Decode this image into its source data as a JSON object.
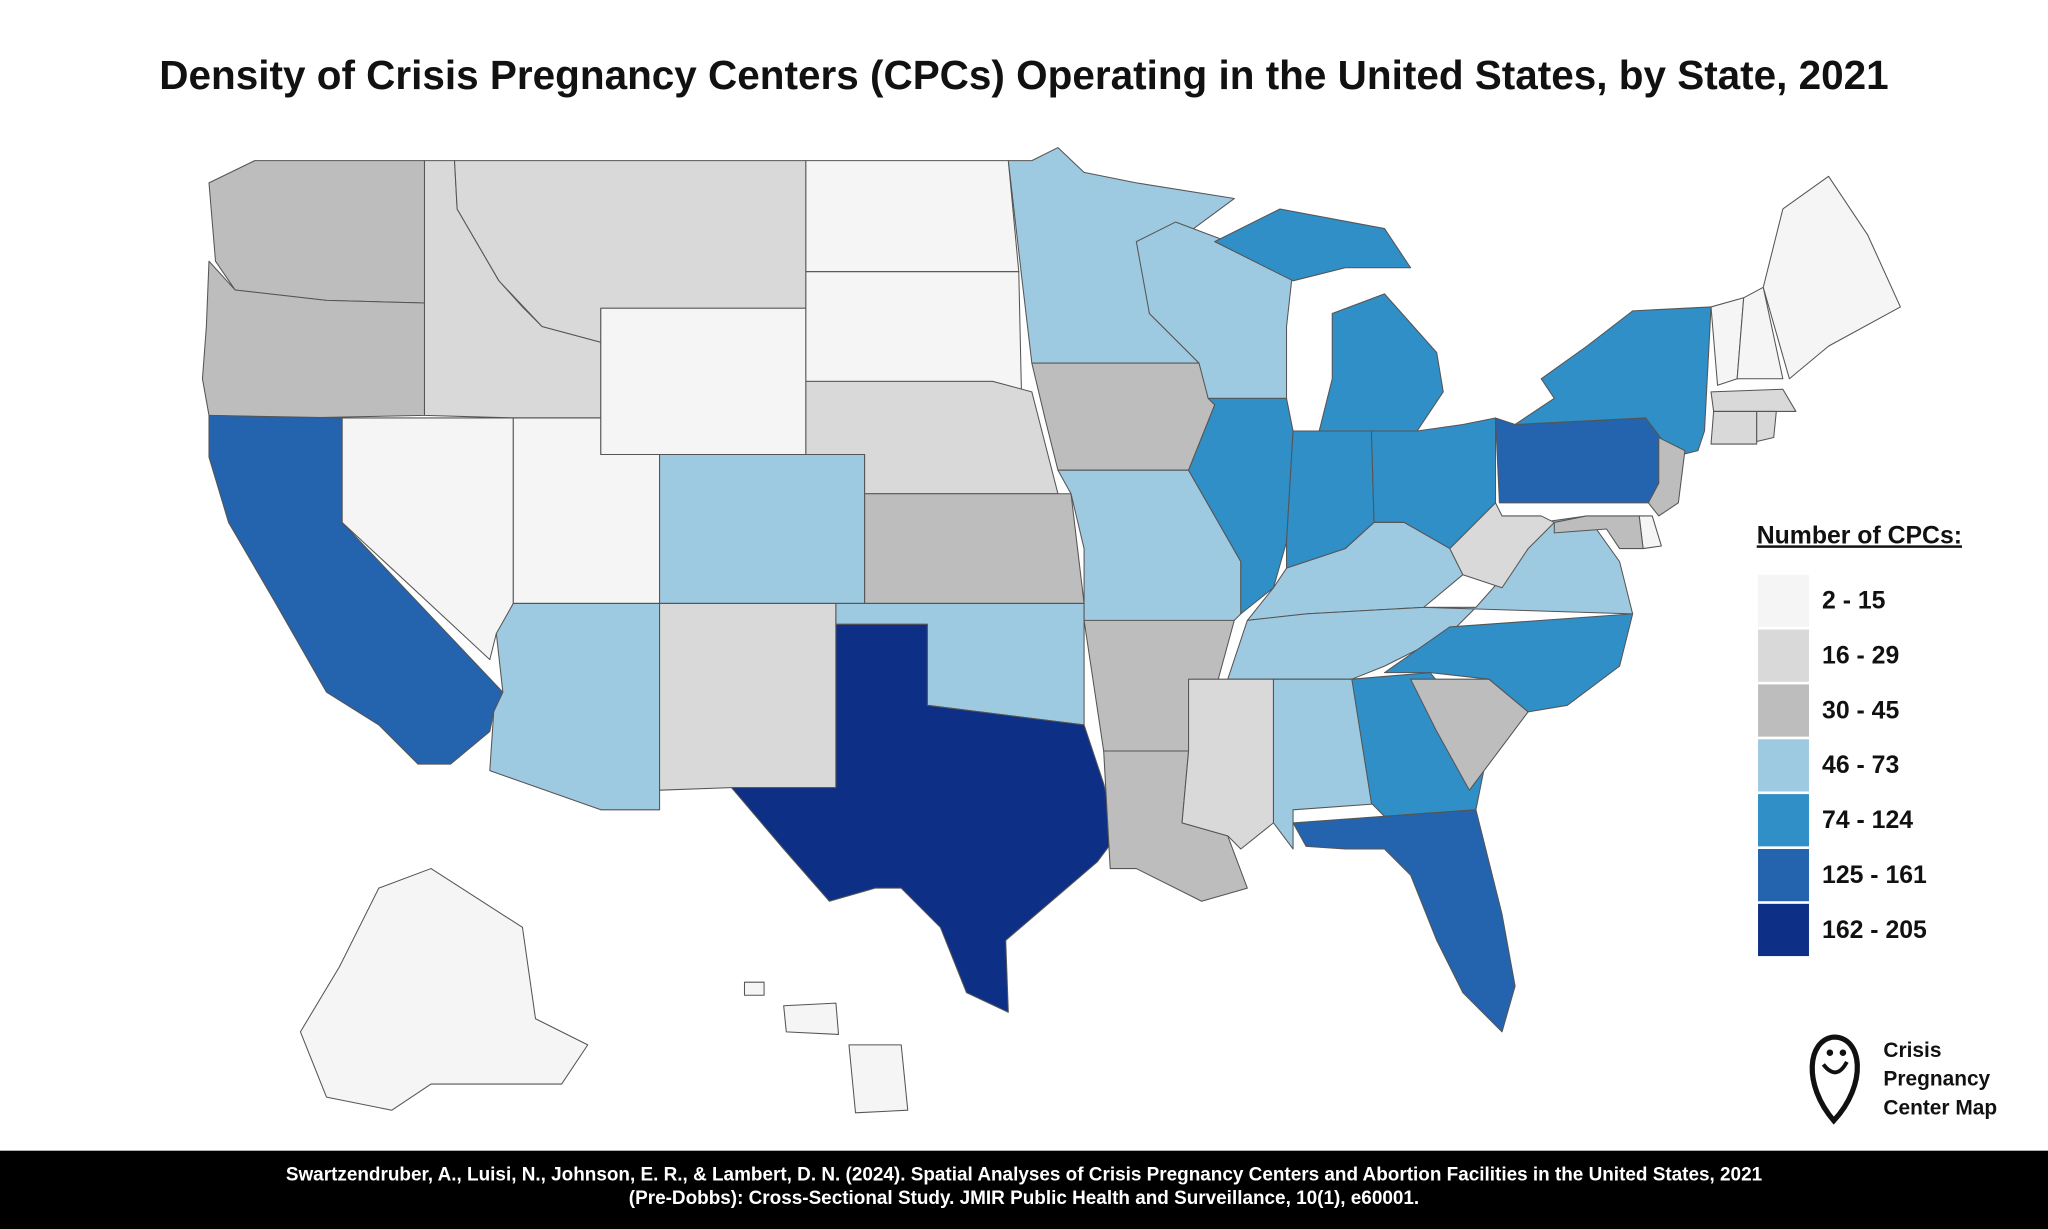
{
  "title": "Density of Crisis Pregnancy Centers (CPCs) Operating in the United States, by State, 2021",
  "chart_data": {
    "type": "choropleth",
    "legend_title": "Number of CPCs:",
    "bins": [
      {
        "label": "2 - 15",
        "color": "#f5f5f5"
      },
      {
        "label": "16 - 29",
        "color": "#d9d9d9"
      },
      {
        "label": "30 - 45",
        "color": "#bdbdbd"
      },
      {
        "label": "46 - 73",
        "color": "#9ecae1"
      },
      {
        "label": "74 - 124",
        "color": "#2f8fc6"
      },
      {
        "label": "125 - 161",
        "color": "#2463ae"
      },
      {
        "label": "162 - 205",
        "color": "#0d2f85"
      }
    ],
    "regions": [
      2,
      2,
      5,
      1,
      0,
      0,
      3,
      1,
      0,
      3,
      1,
      0,
      0,
      1,
      2,
      3,
      6,
      3,
      2,
      3,
      2,
      2,
      3,
      4,
      4,
      4,
      4,
      3,
      3,
      1,
      3,
      4,
      5,
      2,
      4,
      3,
      1,
      5,
      4,
      0,
      0,
      0,
      1,
      1,
      1,
      2,
      0,
      2,
      0,
      0
    ]
  },
  "brand": [
    "Crisis",
    "Pregnancy",
    "Center Map"
  ],
  "citation": [
    "Swartzendruber, A., Luisi, N., Johnson, E. R., & Lambert, D. N. (2024). Spatial Analyses of Crisis Pregnancy Centers and Abortion Facilities in the United States, 2021",
    "(Pre-Dobbs): Cross-Sectional Study. JMIR Public Health and Surveillance, 10(1), e60001."
  ]
}
